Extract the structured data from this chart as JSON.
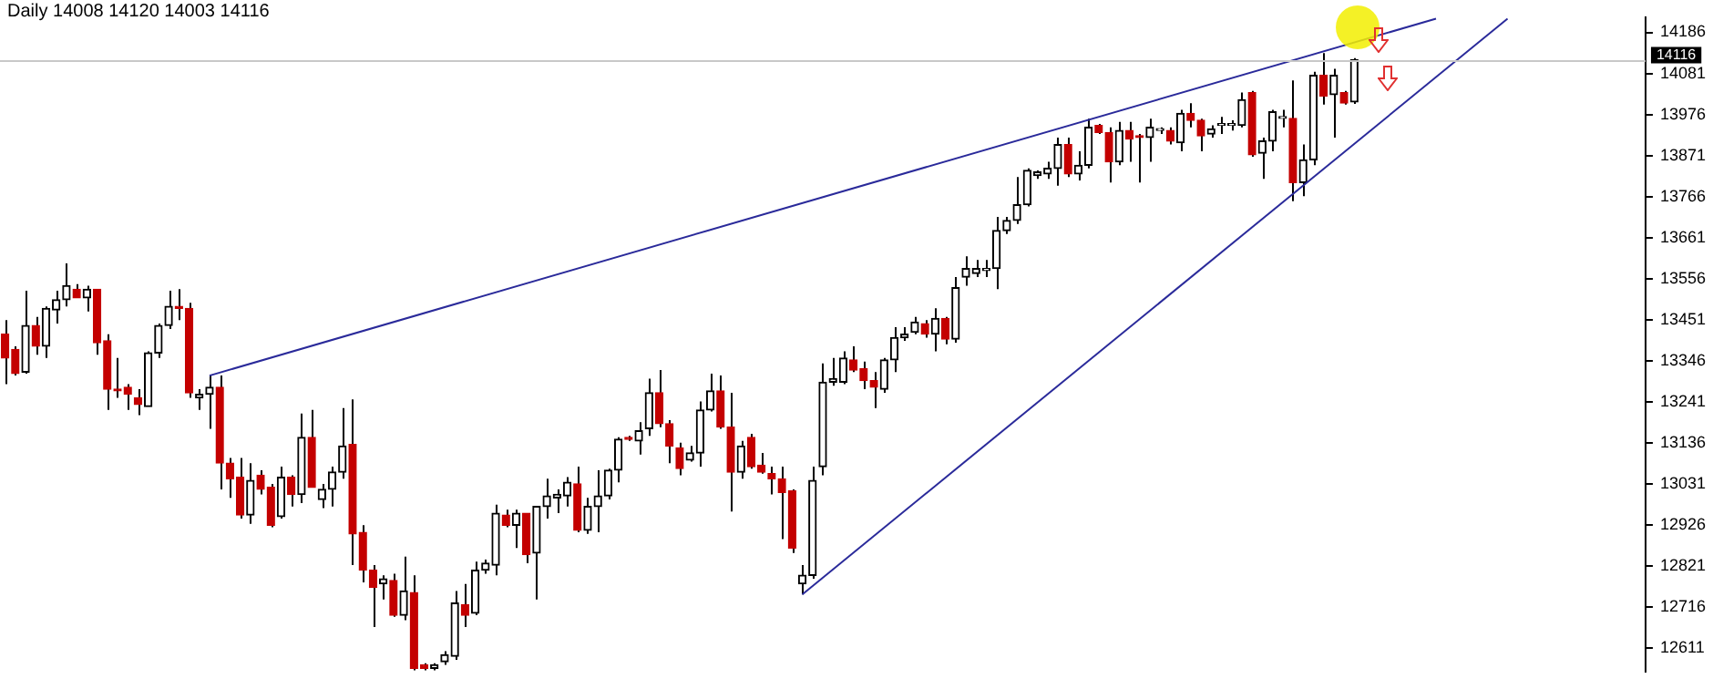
{
  "chart_data": {
    "type": "candlestick",
    "title": "Daily 14008 14120 14003 14116",
    "categories": [
      null,
      null,
      null,
      null,
      null,
      null,
      null,
      null,
      null,
      null,
      null,
      null,
      null,
      null,
      null,
      null,
      null,
      null,
      null,
      null,
      null,
      null,
      null,
      null,
      null,
      null,
      null,
      null,
      null,
      null,
      null,
      null,
      null,
      null,
      null,
      null,
      null,
      null,
      null,
      null,
      null,
      null,
      null,
      null,
      null,
      null,
      null,
      null,
      null,
      null,
      null,
      null,
      null,
      null,
      null,
      null,
      null,
      null,
      null,
      null,
      null,
      null,
      null,
      null,
      null,
      null,
      null,
      null,
      null,
      null,
      null,
      null,
      null,
      null,
      null,
      null,
      null,
      null,
      null,
      null,
      null,
      null,
      null,
      null,
      null,
      null,
      null,
      null,
      null,
      null,
      null,
      null,
      null,
      null,
      null,
      null,
      null,
      null,
      null,
      null,
      null,
      null,
      null,
      null,
      null,
      null,
      null,
      null,
      null,
      null,
      null,
      null,
      null,
      null,
      null,
      null,
      null,
      null,
      null,
      null,
      null,
      null,
      null,
      null,
      null,
      null,
      null,
      null,
      null,
      null,
      null,
      null,
      null,
      null,
      null,
      null,
      null,
      null,
      null,
      null,
      null,
      null,
      null,
      null,
      null,
      null,
      null,
      null,
      null,
      null,
      null,
      null,
      null,
      null,
      null,
      null,
      null,
      null,
      null,
      null,
      null
    ],
    "ohlc": [
      [
        13414,
        13450,
        13286,
        13353
      ],
      [
        13375,
        13383,
        13308,
        13313
      ],
      [
        13317,
        13525,
        13313,
        13436
      ],
      [
        13436,
        13458,
        13361,
        13383
      ],
      [
        13383,
        13485,
        13353,
        13480
      ],
      [
        13476,
        13525,
        13441,
        13502
      ],
      [
        13502,
        13595,
        13485,
        13538
      ],
      [
        13529,
        13542,
        13507,
        13507
      ],
      [
        13507,
        13538,
        13472,
        13529
      ],
      [
        13529,
        13529,
        13361,
        13392
      ],
      [
        13397,
        13414,
        13220,
        13273
      ],
      [
        13273,
        13353,
        13251,
        13269
      ],
      [
        13278,
        13286,
        13220,
        13260
      ],
      [
        13251,
        13273,
        13207,
        13234
      ],
      [
        13229,
        13370,
        13229,
        13366
      ],
      [
        13366,
        13441,
        13353,
        13436
      ],
      [
        13436,
        13525,
        13427,
        13485
      ],
      [
        13485,
        13529,
        13450,
        13480
      ],
      [
        13480,
        13494,
        13251,
        13264
      ],
      [
        13251,
        13273,
        13220,
        13260
      ],
      [
        13260,
        13308,
        13172,
        13278
      ],
      [
        13278,
        13308,
        13017,
        13084
      ],
      [
        13084,
        13097,
        12995,
        13044
      ],
      [
        13048,
        13097,
        12942,
        12951
      ],
      [
        12951,
        13084,
        12929,
        13040
      ],
      [
        13053,
        13066,
        13004,
        13017
      ],
      [
        13022,
        13031,
        12920,
        12925
      ],
      [
        12947,
        13075,
        12942,
        13048
      ],
      [
        13048,
        13053,
        12973,
        13004
      ],
      [
        13004,
        13211,
        12982,
        13150
      ],
      [
        13150,
        13220,
        13022,
        13022
      ],
      [
        12991,
        13031,
        12969,
        13017
      ],
      [
        13017,
        13075,
        12973,
        13061
      ],
      [
        13061,
        13225,
        13044,
        13128
      ],
      [
        13132,
        13247,
        12823,
        12903
      ],
      [
        12907,
        12925,
        12779,
        12810
      ],
      [
        12810,
        12823,
        12665,
        12766
      ],
      [
        12775,
        12797,
        12735,
        12788
      ],
      [
        12784,
        12801,
        12691,
        12695
      ],
      [
        12695,
        12845,
        12682,
        12757
      ],
      [
        12753,
        12797,
        12554,
        12559
      ],
      [
        12568,
        12572,
        12554,
        12559
      ],
      [
        12559,
        12572,
        12554,
        12568
      ],
      [
        12576,
        12603,
        12568,
        12594
      ],
      [
        12590,
        12757,
        12581,
        12726
      ],
      [
        12722,
        12775,
        12665,
        12695
      ],
      [
        12700,
        12832,
        12695,
        12810
      ],
      [
        12810,
        12837,
        12801,
        12828
      ],
      [
        12823,
        12978,
        12797,
        12956
      ],
      [
        12951,
        12965,
        12920,
        12925
      ],
      [
        12925,
        12965,
        12867,
        12956
      ],
      [
        12956,
        12956,
        12828,
        12850
      ],
      [
        12854,
        12973,
        12735,
        12973
      ],
      [
        12973,
        13044,
        12942,
        13000
      ],
      [
        12995,
        13017,
        12956,
        13004
      ],
      [
        13000,
        13048,
        12973,
        13035
      ],
      [
        13031,
        13075,
        12907,
        12912
      ],
      [
        12912,
        12995,
        12903,
        12973
      ],
      [
        12973,
        13066,
        12907,
        13000
      ],
      [
        13000,
        13070,
        12991,
        13066
      ],
      [
        13066,
        13150,
        13035,
        13145
      ],
      [
        13150,
        13154,
        13141,
        13145
      ],
      [
        13141,
        13189,
        13106,
        13167
      ],
      [
        13172,
        13300,
        13154,
        13264
      ],
      [
        13264,
        13322,
        13176,
        13185
      ],
      [
        13185,
        13194,
        13084,
        13128
      ],
      [
        13123,
        13136,
        13053,
        13070
      ],
      [
        13092,
        13128,
        13088,
        13110
      ],
      [
        13110,
        13242,
        13075,
        13220
      ],
      [
        13220,
        13313,
        13216,
        13269
      ],
      [
        13269,
        13308,
        13172,
        13176
      ],
      [
        13176,
        13264,
        12960,
        13061
      ],
      [
        13061,
        13141,
        13044,
        13128
      ],
      [
        13150,
        13159,
        13070,
        13075
      ],
      [
        13079,
        13110,
        13057,
        13061
      ],
      [
        13057,
        13075,
        13004,
        13044
      ],
      [
        13044,
        13075,
        12890,
        13009
      ],
      [
        13013,
        13017,
        12854,
        12867
      ],
      [
        12775,
        12823,
        12748,
        12797
      ],
      [
        12797,
        13075,
        12788,
        13040
      ],
      [
        13075,
        13339,
        13053,
        13291
      ],
      [
        13291,
        13353,
        13282,
        13300
      ],
      [
        13291,
        13370,
        13286,
        13353
      ],
      [
        13348,
        13383,
        13317,
        13322
      ],
      [
        13326,
        13344,
        13273,
        13295
      ],
      [
        13295,
        13317,
        13225,
        13278
      ],
      [
        13273,
        13353,
        13264,
        13348
      ],
      [
        13348,
        13432,
        13317,
        13405
      ],
      [
        13405,
        13432,
        13397,
        13414
      ],
      [
        13419,
        13458,
        13414,
        13445
      ],
      [
        13441,
        13450,
        13405,
        13414
      ],
      [
        13414,
        13480,
        13370,
        13454
      ],
      [
        13454,
        13458,
        13388,
        13401
      ],
      [
        13401,
        13560,
        13392,
        13533
      ],
      [
        13560,
        13613,
        13538,
        13582
      ],
      [
        13569,
        13604,
        13560,
        13582
      ],
      [
        13577,
        13604,
        13560,
        13582
      ],
      [
        13582,
        13714,
        13529,
        13679
      ],
      [
        13679,
        13714,
        13670,
        13705
      ],
      [
        13705,
        13816,
        13696,
        13745
      ],
      [
        13745,
        13838,
        13741,
        13833
      ],
      [
        13820,
        13833,
        13811,
        13829
      ],
      [
        13824,
        13855,
        13811,
        13838
      ],
      [
        13838,
        13917,
        13794,
        13899
      ],
      [
        13899,
        13917,
        13816,
        13824
      ],
      [
        13824,
        13882,
        13807,
        13846
      ],
      [
        13846,
        13965,
        13838,
        13943
      ],
      [
        13948,
        13952,
        13926,
        13930
      ],
      [
        13930,
        13943,
        13802,
        13855
      ],
      [
        13855,
        13957,
        13846,
        13935
      ],
      [
        13935,
        13957,
        13855,
        13913
      ],
      [
        13921,
        13926,
        13802,
        13917
      ],
      [
        13917,
        13965,
        13855,
        13943
      ],
      [
        13935,
        13943,
        13926,
        13939
      ],
      [
        13935,
        13943,
        13899,
        13908
      ],
      [
        13904,
        13988,
        13882,
        13979
      ],
      [
        13979,
        14005,
        13943,
        13961
      ],
      [
        13961,
        13965,
        13882,
        13921
      ],
      [
        13926,
        13948,
        13917,
        13939
      ],
      [
        13948,
        13970,
        13926,
        13952
      ],
      [
        13948,
        13961,
        13935,
        13952
      ],
      [
        13948,
        14032,
        13943,
        14014
      ],
      [
        14032,
        14036,
        13868,
        13873
      ],
      [
        13877,
        13917,
        13811,
        13908
      ],
      [
        13908,
        13988,
        13882,
        13983
      ],
      [
        13966,
        13988,
        13943,
        13970
      ],
      [
        13966,
        14063,
        13754,
        13802
      ],
      [
        13802,
        13899,
        13767,
        13860
      ],
      [
        13860,
        14085,
        13846,
        14076
      ],
      [
        14076,
        14133,
        14001,
        14023
      ],
      [
        14027,
        14093,
        13917,
        14076
      ],
      [
        14032,
        14036,
        14001,
        14005
      ],
      [
        14008,
        14120,
        14003,
        14116
      ],
      null,
      null,
      null,
      null,
      null,
      null,
      null,
      null,
      null,
      null,
      null,
      null,
      null,
      null,
      null,
      null,
      null,
      null,
      null,
      null,
      null,
      null,
      null,
      null,
      null,
      null,
      null,
      null
    ],
    "series": [
      {
        "type": "line",
        "color": "#2a2a9a",
        "values": [
          null,
          null,
          null,
          null,
          null,
          null,
          null,
          null,
          null,
          null,
          null,
          null,
          null,
          null,
          null,
          null,
          null,
          null,
          null,
          null,
          13308,
          null,
          null,
          null,
          null,
          null,
          null,
          null,
          null,
          null,
          null,
          null,
          null,
          null,
          null,
          null,
          null,
          null,
          null,
          null,
          null,
          null,
          null,
          null,
          null,
          null,
          null,
          null,
          null,
          null,
          null,
          null,
          null,
          null,
          null,
          null,
          null,
          null,
          null,
          null,
          null,
          null,
          null,
          null,
          null,
          null,
          null,
          null,
          null,
          null,
          null,
          null,
          null,
          null,
          null,
          null,
          null,
          null,
          null,
          null,
          null,
          null,
          null,
          null,
          null,
          null,
          null,
          null,
          null,
          null,
          null,
          null,
          null,
          null,
          null,
          null,
          null,
          null,
          null,
          null,
          null,
          null,
          null,
          null,
          null,
          null,
          null,
          null,
          null,
          null,
          null,
          null,
          null,
          null,
          null,
          null,
          null,
          null,
          null,
          null,
          null,
          null,
          null,
          null,
          null,
          null,
          null,
          null,
          null,
          null,
          null,
          null,
          null,
          null,
          null,
          null,
          null,
          null,
          null,
          null,
          14221,
          null,
          null,
          null,
          null,
          null,
          null,
          null,
          null,
          null,
          null,
          null,
          null,
          null,
          null,
          null,
          null,
          null,
          null,
          null,
          null
        ]
      },
      {
        "type": "line",
        "color": "#2a2a9a",
        "values": [
          null,
          null,
          null,
          null,
          null,
          null,
          null,
          null,
          null,
          null,
          null,
          null,
          null,
          null,
          null,
          null,
          null,
          null,
          null,
          null,
          null,
          null,
          null,
          null,
          null,
          null,
          null,
          null,
          null,
          null,
          null,
          null,
          null,
          null,
          null,
          null,
          null,
          null,
          null,
          null,
          null,
          null,
          null,
          null,
          null,
          null,
          null,
          null,
          null,
          null,
          null,
          null,
          null,
          null,
          null,
          null,
          null,
          null,
          null,
          null,
          null,
          null,
          null,
          null,
          null,
          null,
          null,
          null,
          null,
          null,
          null,
          null,
          null,
          null,
          null,
          null,
          null,
          null,
          12748,
          null,
          null,
          null,
          null,
          null,
          null,
          null,
          null,
          null,
          null,
          null,
          null,
          null,
          null,
          null,
          null,
          null,
          null,
          null,
          null,
          null,
          null,
          null,
          null,
          null,
          null,
          null,
          null,
          null,
          null,
          null,
          null,
          null,
          null,
          null,
          null,
          null,
          null,
          null,
          null,
          null,
          null,
          null,
          null,
          null,
          null,
          null,
          null,
          null,
          null,
          null,
          null,
          null,
          null,
          null,
          null,
          null,
          null,
          null,
          null,
          null,
          null,
          null,
          null,
          null,
          null,
          null,
          null,
          14221,
          null,
          null,
          null,
          null,
          null,
          null,
          null,
          null,
          null,
          null,
          null,
          null,
          null
        ]
      }
    ],
    "ylim": [
      12550,
      14225
    ],
    "yticks": [
      12611,
      12716,
      12821,
      12926,
      13031,
      13136,
      13241,
      13346,
      13451,
      13556,
      13661,
      13766,
      13871,
      13976,
      14081,
      14186
    ],
    "ref_lines": [
      {
        "axis": "y",
        "value": 14116,
        "label": "14116",
        "color": "#c8c8c8"
      }
    ],
    "grid": false,
    "legend": false,
    "tick_labels": "y"
  }
}
